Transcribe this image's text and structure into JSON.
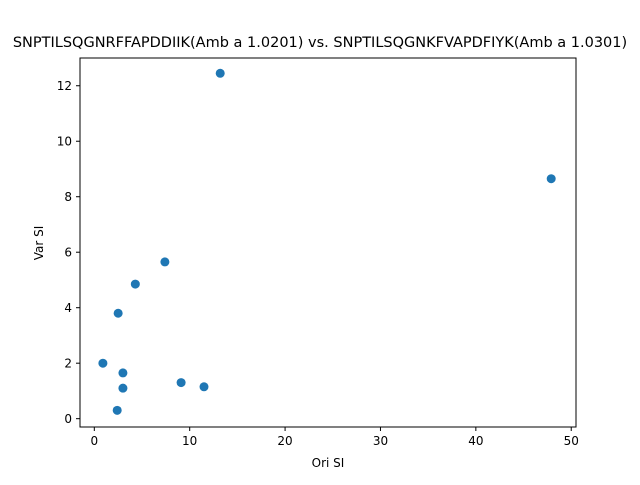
{
  "chart_data": {
    "type": "scatter",
    "title": "SNPTILSQGNRFFAPDDIIK(Amb a 1.0201) vs. SNPTILSQGNKFVAPDFIYK(Amb a 1.0301)",
    "xlabel": "Ori SI",
    "ylabel": "Var SI",
    "xlim": [
      -1.5,
      50.5
    ],
    "ylim": [
      -0.3,
      13.0
    ],
    "x_ticks": [
      0,
      10,
      20,
      30,
      40,
      50
    ],
    "y_ticks": [
      0,
      2,
      4,
      6,
      8,
      10,
      12
    ],
    "grid": false,
    "legend": "none",
    "marker_color": "#1f77b4",
    "points": [
      {
        "x": 13.2,
        "y": 12.45
      },
      {
        "x": 47.9,
        "y": 8.65
      },
      {
        "x": 7.4,
        "y": 5.65
      },
      {
        "x": 4.3,
        "y": 4.85
      },
      {
        "x": 2.5,
        "y": 3.8
      },
      {
        "x": 0.9,
        "y": 2.0
      },
      {
        "x": 3.0,
        "y": 1.65
      },
      {
        "x": 3.0,
        "y": 1.1
      },
      {
        "x": 9.1,
        "y": 1.3
      },
      {
        "x": 11.5,
        "y": 1.15
      },
      {
        "x": 2.4,
        "y": 0.3
      }
    ]
  }
}
